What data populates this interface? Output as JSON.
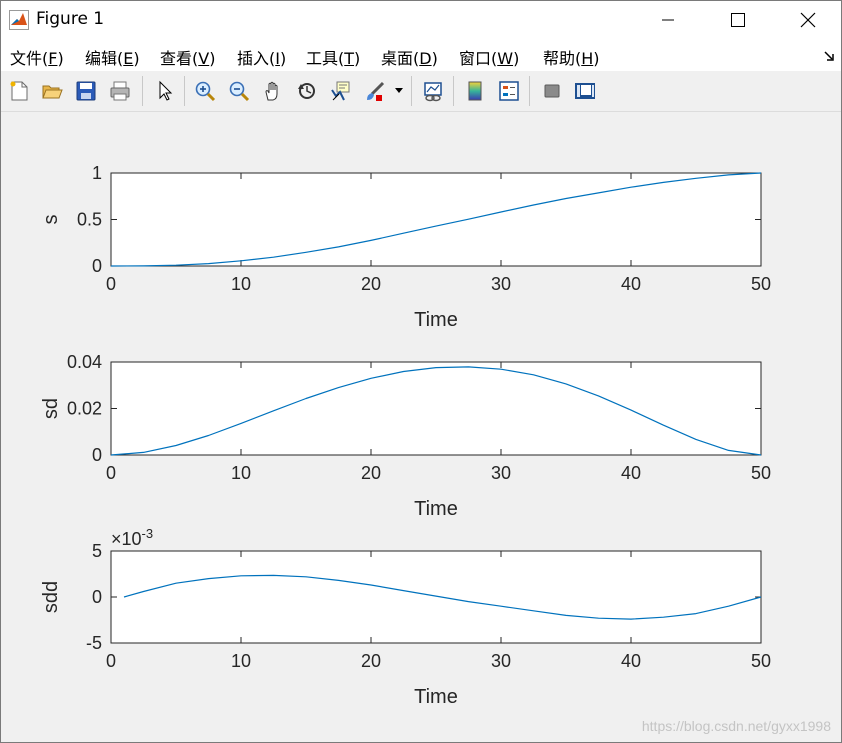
{
  "window": {
    "title": "Figure 1",
    "controls": {
      "minimize": "—",
      "maximize": "☐",
      "close": "✕"
    }
  },
  "menubar": {
    "items": [
      {
        "label": "文件(",
        "accel": "F",
        "tail": ")"
      },
      {
        "label": "编辑(",
        "accel": "E",
        "tail": ")"
      },
      {
        "label": "查看(",
        "accel": "V",
        "tail": ")"
      },
      {
        "label": "插入(",
        "accel": "I",
        "tail": ")"
      },
      {
        "label": "工具(",
        "accel": "T",
        "tail": ")"
      },
      {
        "label": "桌面(",
        "accel": "D",
        "tail": ")"
      },
      {
        "label": "窗口(",
        "accel": "W",
        "tail": ")"
      },
      {
        "label": "帮助(",
        "accel": "H",
        "tail": ")"
      }
    ]
  },
  "toolbar": {
    "buttons": [
      "new-figure-icon",
      "open-file-icon",
      "save-icon",
      "print-icon",
      "select-arrow-icon",
      "zoom-in-icon",
      "zoom-out-icon",
      "pan-hand-icon",
      "rotate-3d-icon",
      "data-cursor-icon",
      "brush-icon",
      "link-plot-icon",
      "insert-colorbar-icon",
      "insert-legend-icon",
      "hide-plot-tools-icon",
      "show-plot-tools-icon"
    ]
  },
  "colors": {
    "line": "#0072bd",
    "axes_bg": "#ffffff",
    "figure_bg": "#f0f0f0"
  },
  "chart_data": [
    {
      "type": "line",
      "xlabel": "Time",
      "ylabel": "s",
      "xlim": [
        0,
        50
      ],
      "ylim": [
        0,
        1
      ],
      "xticks": [
        "0",
        "10",
        "20",
        "30",
        "40",
        "50"
      ],
      "yticks": [
        "0",
        "0.5",
        "1"
      ],
      "exponent": "",
      "series": [
        {
          "x": [
            0,
            2.5,
            5,
            7.5,
            10,
            12.5,
            15,
            17.5,
            20,
            22.5,
            25,
            27.5,
            30,
            32.5,
            35,
            37.5,
            40,
            42.5,
            45,
            47.5,
            50
          ],
          "values": [
            0,
            0.0007,
            0.0086,
            0.0253,
            0.0559,
            0.0943,
            0.1476,
            0.2056,
            0.2752,
            0.3529,
            0.4289,
            0.5028,
            0.5807,
            0.6555,
            0.7256,
            0.7859,
            0.8474,
            0.8992,
            0.9434,
            0.9792,
            1.0
          ]
        }
      ]
    },
    {
      "type": "line",
      "xlabel": "Time",
      "ylabel": "sd",
      "xlim": [
        0,
        50
      ],
      "ylim": [
        0,
        0.04
      ],
      "xticks": [
        "0",
        "10",
        "20",
        "30",
        "40",
        "50"
      ],
      "yticks": [
        "0",
        "0.02",
        "0.04"
      ],
      "exponent": "",
      "series": [
        {
          "x": [
            0,
            2.5,
            5,
            7.5,
            10,
            12.5,
            15,
            17.5,
            20,
            22.5,
            25,
            27.5,
            30,
            32.5,
            35,
            37.5,
            40,
            42.5,
            45,
            47.5,
            50
          ],
          "values": [
            0,
            0.0011,
            0.0041,
            0.0084,
            0.0136,
            0.019,
            0.0243,
            0.029,
            0.033,
            0.0359,
            0.0376,
            0.0379,
            0.0369,
            0.0345,
            0.0306,
            0.0254,
            0.0193,
            0.0128,
            0.0067,
            0.002,
            0.0
          ]
        }
      ]
    },
    {
      "type": "line",
      "xlabel": "Time",
      "ylabel": "sdd",
      "xlim": [
        0,
        50
      ],
      "ylim": [
        -5,
        5
      ],
      "xticks": [
        "0",
        "10",
        "20",
        "30",
        "40",
        "50"
      ],
      "yticks": [
        "-5",
        "0",
        "5"
      ],
      "exponent": "-3",
      "series": [
        {
          "x": [
            1,
            2.5,
            5,
            7.5,
            10,
            12.5,
            15,
            17.5,
            20,
            22.5,
            25,
            27.5,
            30,
            32.5,
            35,
            37.5,
            40,
            42.5,
            45,
            47.5,
            50
          ],
          "values": [
            0,
            0.6,
            1.5,
            2.0,
            2.3,
            2.35,
            2.2,
            1.8,
            1.3,
            0.7,
            0.1,
            -0.5,
            -1.0,
            -1.5,
            -2.0,
            -2.3,
            -2.4,
            -2.2,
            -1.8,
            -1.0,
            0.0
          ]
        }
      ]
    }
  ],
  "watermark": "https://blog.csdn.net/gyxx1998"
}
